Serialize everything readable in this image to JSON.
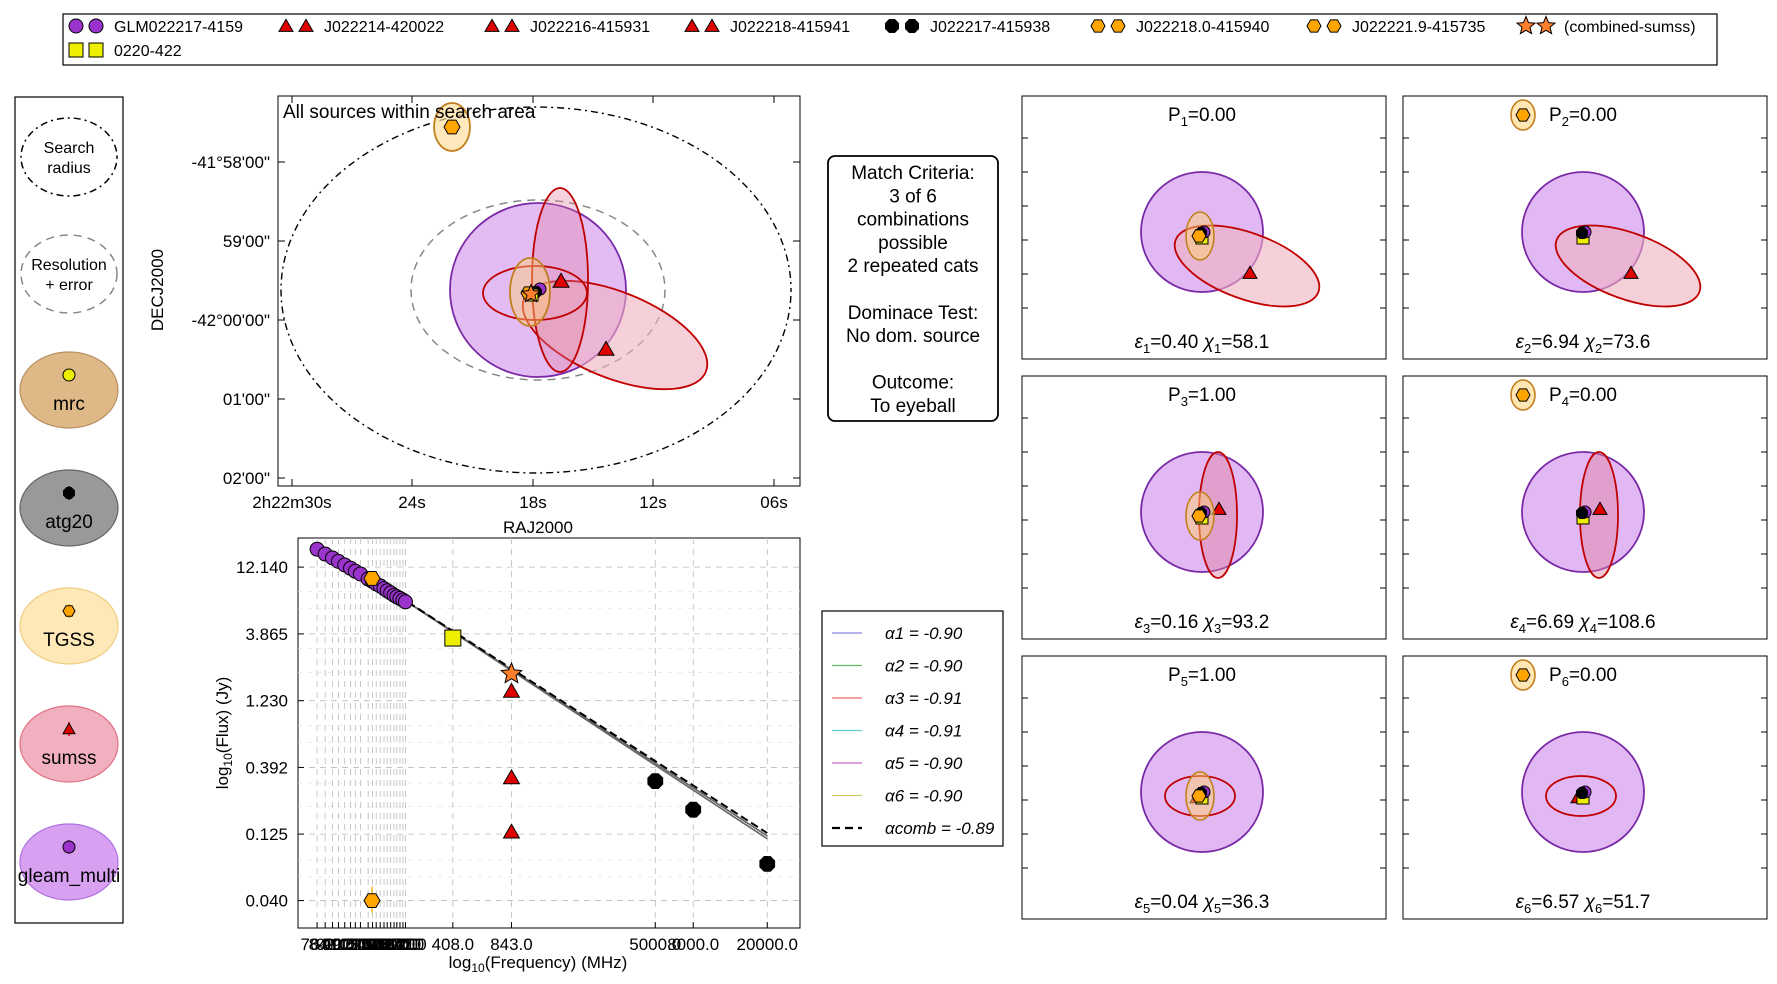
{
  "legend_top": {
    "entries": [
      {
        "label": "GLM022217-4159",
        "marker": "circle",
        "color": "#9933cc"
      },
      {
        "label": "J022214-420022",
        "marker": "triangle",
        "color": "#e00000"
      },
      {
        "label": "J022216-415931",
        "marker": "triangle",
        "color": "#e00000"
      },
      {
        "label": "J022218-415941",
        "marker": "triangle",
        "color": "#e00000"
      },
      {
        "label": "J022217-415938",
        "marker": "octagon",
        "color": "#000000"
      },
      {
        "label": "J022218.0-415940",
        "marker": "hexagon",
        "color": "#ffa500"
      },
      {
        "label": "J022221.9-415735",
        "marker": "hexagon",
        "color": "#ffa500"
      },
      {
        "label": "(combined-sumss)",
        "marker": "star",
        "color": "#ff7f2a"
      },
      {
        "label": "0220-422",
        "marker": "square",
        "color": "#eeee00"
      }
    ]
  },
  "key_panel": {
    "items": [
      {
        "label": "Search\nradius",
        "style": "dotted"
      },
      {
        "label": "Resolution\n+ error",
        "style": "dashed"
      },
      {
        "label": "mrc",
        "fill": "#deb887",
        "edge": "#b89060",
        "marker": "circle",
        "marker_color": "#eeee00"
      },
      {
        "label": "atg20",
        "fill": "#999999",
        "edge": "#666666",
        "marker": "octagon",
        "marker_color": "#000000"
      },
      {
        "label": "TGSS",
        "fill": "#ffe8b8",
        "edge": "#f0cc80",
        "marker": "hexagon",
        "marker_color": "#ffa500"
      },
      {
        "label": "sumss",
        "fill": "#f0b0c0",
        "edge": "#e07080",
        "marker": "triangle",
        "marker_color": "#e00000"
      },
      {
        "label": "gleam_multi",
        "fill": "#d8a0f0",
        "edge": "#b070e0",
        "marker": "circle",
        "marker_color": "#9933cc"
      }
    ]
  },
  "sky_plot": {
    "title": "All sources within search area",
    "xlabel": "RAJ2000",
    "ylabel": "DECJ2000",
    "x_ticks": [
      "2h22m30s",
      "24s",
      "18s",
      "12s",
      "06s"
    ],
    "y_ticks": [
      "-41°58'00\"",
      "59'00\"",
      "-42°00'00\"",
      "01'00\"",
      "02'00\""
    ]
  },
  "match_box": {
    "lines": [
      "Match Criteria:",
      "3 of 6",
      "combinations",
      "possible",
      "2 repeated cats",
      "",
      "Dominace Test:",
      "No dom. source",
      "",
      "Outcome:",
      "To eyeball"
    ]
  },
  "chart_data": [
    {
      "type": "scatter",
      "title": "",
      "xlabel": "log10(Frequency) (MHz)",
      "ylabel": "log10(Flux) (Jy)",
      "x_tick_labels": [
        "76.0",
        "84.0",
        "92.0",
        "99.0",
        "107.0",
        "115.0",
        "122.0",
        "130.0",
        "143.0",
        "151.0",
        "158.0",
        "166.0",
        "174.0",
        "181.0",
        "189.0",
        "197.0",
        "204.0",
        "212.0",
        "220.0",
        "227.0",
        "408.0",
        "843.0",
        "5000.0",
        "8000.0",
        "20000.0"
      ],
      "y_tick_labels": [
        "12.140",
        "3.865",
        "1.230",
        "0.392",
        "0.125",
        "0.040"
      ],
      "series": [
        {
          "name": "GLM022217-4159",
          "marker": "circle",
          "color": "#9933cc",
          "x": [
            76,
            84,
            92,
            99,
            107,
            115,
            122,
            130,
            143,
            151,
            158,
            166,
            174,
            181,
            189,
            197,
            204,
            212,
            220,
            227
          ],
          "y": [
            16.5,
            15.2,
            14.2,
            13.4,
            12.6,
            11.9,
            11.3,
            10.8,
            9.9,
            9.5,
            9.1,
            8.8,
            8.4,
            8.1,
            7.8,
            7.5,
            7.3,
            7.1,
            6.9,
            6.7
          ]
        },
        {
          "name": "J022214-420022",
          "marker": "triangle",
          "color": "#e00000",
          "x": [
            843
          ],
          "y": [
            0.33
          ]
        },
        {
          "name": "J022216-415931",
          "marker": "triangle",
          "color": "#e00000",
          "x": [
            843
          ],
          "y": [
            1.45
          ]
        },
        {
          "name": "J022218-415941",
          "marker": "triangle",
          "color": "#e00000",
          "x": [
            843
          ],
          "y": [
            0.13
          ]
        },
        {
          "name": "J022217-415938",
          "marker": "octagon",
          "color": "#000000",
          "x": [
            5000,
            8000,
            20000
          ],
          "y": [
            0.31,
            0.19,
            0.075
          ]
        },
        {
          "name": "J022218.0-415940",
          "marker": "hexagon",
          "color": "#ffa500",
          "x": [
            150
          ],
          "y": [
            10.0
          ]
        },
        {
          "name": "J022221.9-415735",
          "marker": "hexagon",
          "color": "#ffa500",
          "x": [
            150
          ],
          "y": [
            0.04
          ]
        },
        {
          "name": "(combined-sumss)",
          "marker": "star",
          "color": "#ff7f2a",
          "x": [
            843
          ],
          "y": [
            1.95
          ]
        },
        {
          "name": "0220-422",
          "marker": "square",
          "color": "#eeee00",
          "x": [
            408
          ],
          "y": [
            3.6
          ]
        }
      ],
      "fit_lines": [
        {
          "label": "α1 = -0.90",
          "color": "#8888dd",
          "alpha": -0.9
        },
        {
          "label": "α2 = -0.90",
          "color": "#66bb66",
          "alpha": -0.9
        },
        {
          "label": "α3 = -0.91",
          "color": "#ee6666",
          "alpha": -0.91
        },
        {
          "label": "α4 = -0.91",
          "color": "#66cccc",
          "alpha": -0.91
        },
        {
          "label": "α5 = -0.90",
          "color": "#cc66cc",
          "alpha": -0.9
        },
        {
          "label": "α6 = -0.90",
          "color": "#cccc66",
          "alpha": -0.9
        },
        {
          "label": "αcomb = -0.89",
          "color": "#000000",
          "alpha": -0.89,
          "dashed": true
        }
      ],
      "xscale": "log",
      "yscale": "log",
      "xlim": [
        60,
        30000
      ],
      "ylim": [
        0.025,
        20
      ],
      "grid": true
    }
  ],
  "combos": [
    {
      "p": "P",
      "p_sub": "1",
      "p_val": "=0.00",
      "eps_sub": "1",
      "eps_val": "=0.40",
      "chi_sub": "1",
      "chi_val": "=58.1",
      "hex": false,
      "variant": "a"
    },
    {
      "p": "P",
      "p_sub": "2",
      "p_val": "=0.00",
      "eps_sub": "2",
      "eps_val": "=6.94",
      "chi_sub": "2",
      "chi_val": "=73.6",
      "hex": true,
      "variant": "a"
    },
    {
      "p": "P",
      "p_sub": "3",
      "p_val": "=1.00",
      "eps_sub": "3",
      "eps_val": "=0.16",
      "chi_sub": "3",
      "chi_val": "=93.2",
      "hex": false,
      "variant": "b"
    },
    {
      "p": "P",
      "p_sub": "4",
      "p_val": "=0.00",
      "eps_sub": "4",
      "eps_val": "=6.69",
      "chi_sub": "4",
      "chi_val": "=108.6",
      "hex": true,
      "variant": "b"
    },
    {
      "p": "P",
      "p_sub": "5",
      "p_val": "=1.00",
      "eps_sub": "5",
      "eps_val": "=0.04",
      "chi_sub": "5",
      "chi_val": "=36.3",
      "hex": false,
      "variant": "c"
    },
    {
      "p": "P",
      "p_sub": "6",
      "p_val": "=0.00",
      "eps_sub": "6",
      "eps_val": "=6.57",
      "chi_sub": "6",
      "chi_val": "=51.7",
      "hex": true,
      "variant": "c"
    }
  ]
}
